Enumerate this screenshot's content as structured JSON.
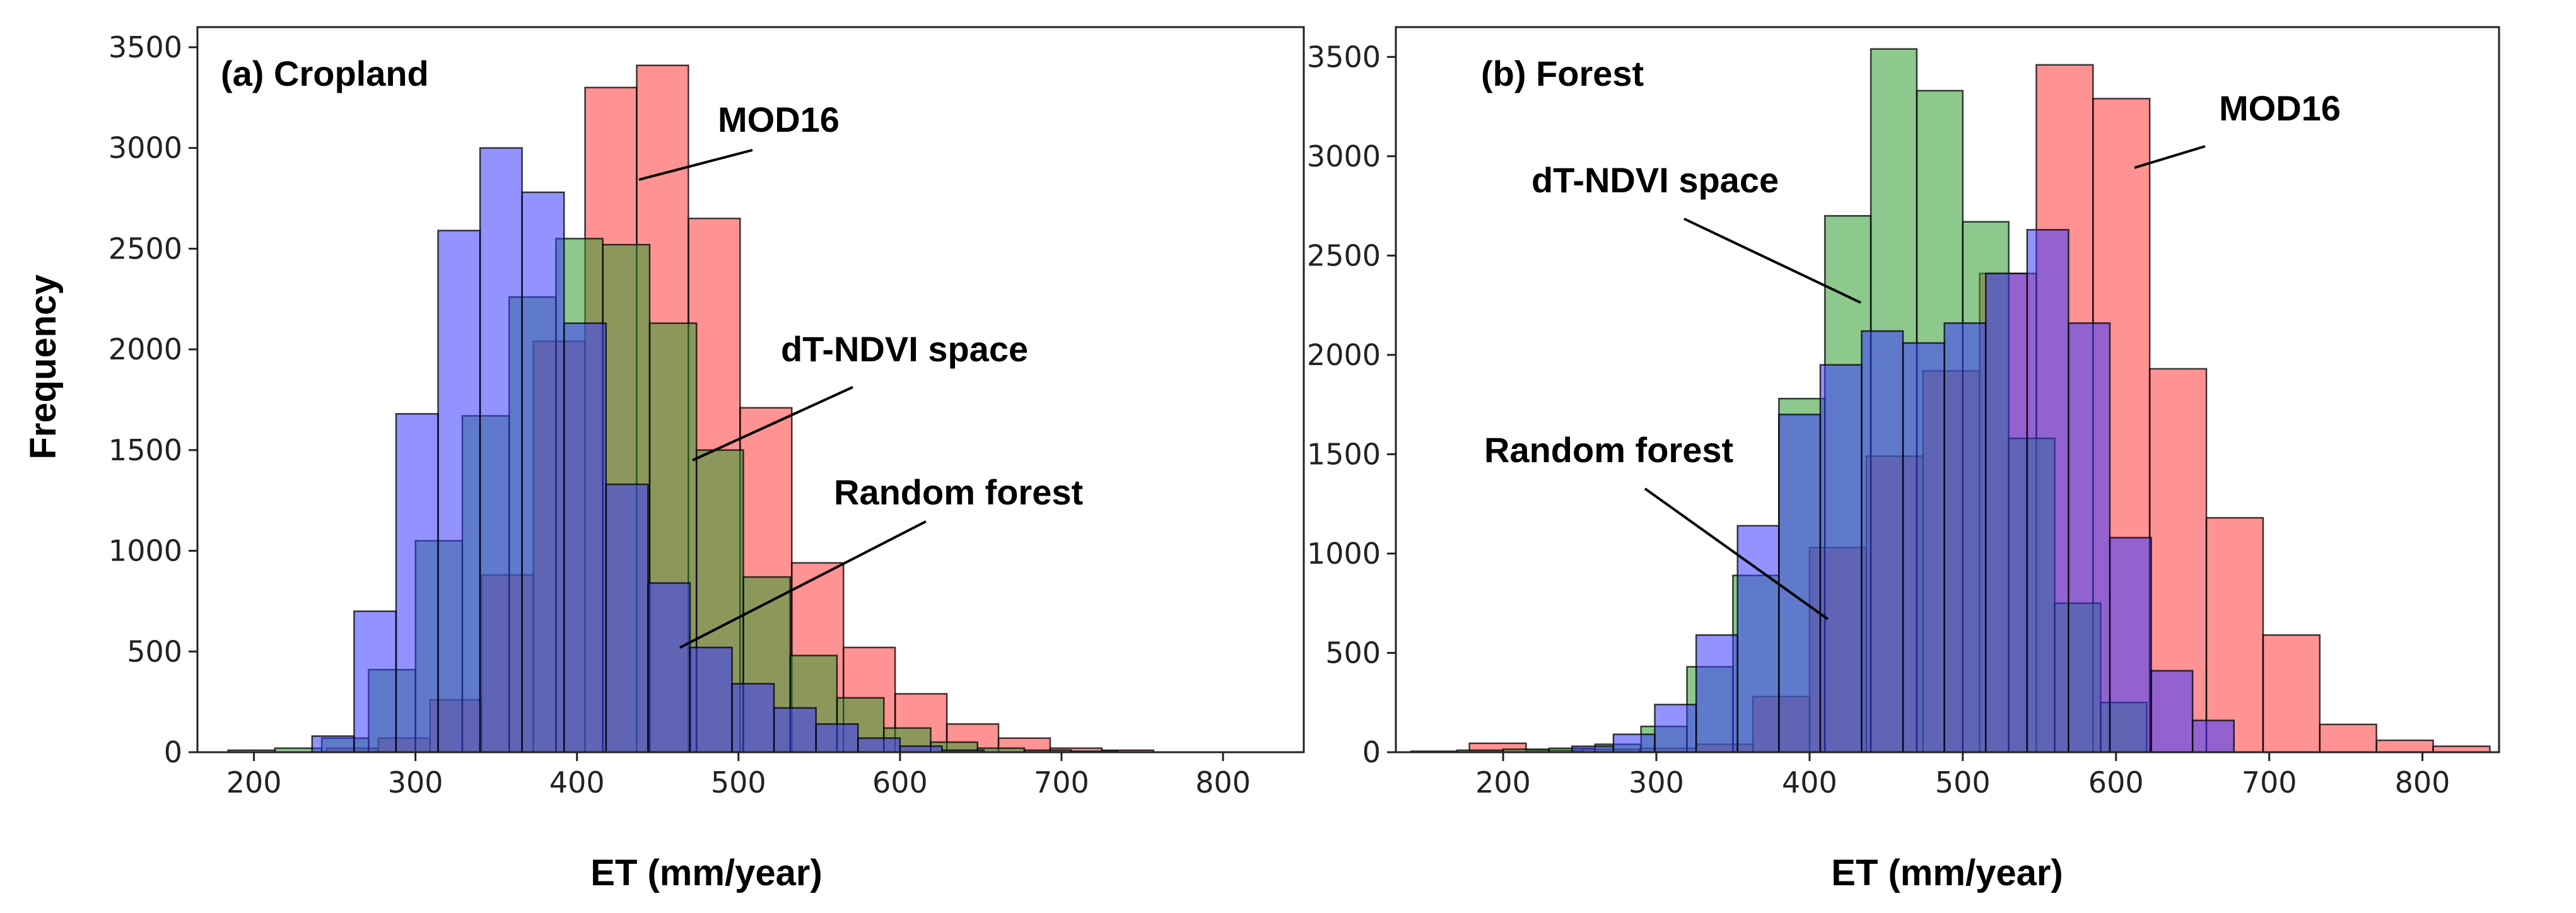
{
  "figure": {
    "ylabel": "Frequency"
  },
  "colors": {
    "mod16": "#ff3b3b",
    "dtndvi": "#2f9a2f",
    "rf": "#3a3aff"
  },
  "chart_data": [
    {
      "type": "bar",
      "title": "(a) Cropland",
      "xlabel": "ET (mm/year)",
      "ylabel": "Frequency",
      "xlim": [
        165,
        850
      ],
      "ylim": [
        0,
        3600
      ],
      "xticks": [
        200,
        300,
        400,
        500,
        600,
        700,
        800
      ],
      "yticks": [
        0,
        500,
        1000,
        1500,
        2000,
        2500,
        3000,
        3500
      ],
      "series": [
        {
          "name": "MOD16",
          "color": "#ff3b3b",
          "edges": [
            245,
            277,
            309,
            341,
            373,
            405,
            437,
            469,
            501,
            533,
            565,
            597,
            629,
            661,
            693,
            725,
            757
          ],
          "values": [
            20,
            70,
            260,
            880,
            2040,
            3300,
            3410,
            2650,
            1710,
            940,
            520,
            290,
            140,
            70,
            20,
            10
          ]
        },
        {
          "name": "dT-NDVI space",
          "color": "#2f9a2f",
          "edges": [
            184,
            213,
            242,
            271,
            300,
            329,
            358,
            387,
            416,
            445,
            474,
            503,
            532,
            561,
            590,
            619,
            648,
            677,
            706,
            735
          ],
          "values": [
            10,
            20,
            70,
            410,
            1050,
            1670,
            2260,
            2550,
            2520,
            2130,
            1500,
            870,
            480,
            270,
            120,
            50,
            20,
            10,
            5
          ]
        },
        {
          "name": "Random forest",
          "color": "#3a3aff",
          "edges": [
            236,
            262,
            288,
            314,
            340,
            366,
            392,
            418,
            444,
            470,
            496,
            522,
            548,
            574,
            600,
            626,
            652
          ],
          "values": [
            80,
            700,
            1680,
            2590,
            3000,
            2780,
            2130,
            1330,
            840,
            520,
            340,
            220,
            140,
            70,
            30,
            10
          ]
        }
      ],
      "annotations": [
        {
          "text": "MOD16",
          "series": "MOD16"
        },
        {
          "text": "dT-NDVI space",
          "series": "dT-NDVI space"
        },
        {
          "text": "Random forest",
          "series": "Random forest"
        }
      ]
    },
    {
      "type": "bar",
      "title": "(b) Forest",
      "xlabel": "ET (mm/year)",
      "ylabel": "",
      "xlim": [
        130,
        850
      ],
      "ylim": [
        0,
        3650
      ],
      "xticks": [
        200,
        300,
        400,
        500,
        600,
        700,
        800
      ],
      "yticks": [
        0,
        500,
        1000,
        1500,
        2000,
        2500,
        3000,
        3500
      ],
      "series": [
        {
          "name": "MOD16",
          "color": "#ff3b3b",
          "edges": [
            178,
            215,
            252,
            289,
            326,
            363,
            400,
            437,
            474,
            511,
            548,
            585,
            622,
            659,
            696,
            733,
            770,
            807,
            844
          ],
          "values": [
            45,
            10,
            15,
            20,
            40,
            280,
            1030,
            1490,
            1920,
            2410,
            3460,
            3290,
            1930,
            1180,
            590,
            140,
            60,
            30
          ]
        },
        {
          "name": "dT-NDVI space",
          "color": "#2f9a2f",
          "edges": [
            140,
            170,
            200,
            230,
            260,
            290,
            320,
            350,
            380,
            410,
            440,
            470,
            500,
            530,
            560,
            590,
            620
          ],
          "values": [
            5,
            10,
            15,
            20,
            40,
            130,
            430,
            890,
            1780,
            2700,
            3540,
            3330,
            2670,
            1580,
            750,
            250
          ]
        },
        {
          "name": "Random forest",
          "color": "#3a3aff",
          "edges": [
            245,
            272,
            299,
            326,
            353,
            380,
            407,
            434,
            461,
            488,
            515,
            542,
            569,
            596,
            623,
            650,
            677
          ],
          "values": [
            30,
            90,
            240,
            590,
            1140,
            1700,
            1950,
            2120,
            2060,
            2160,
            2410,
            2630,
            2160,
            1080,
            410,
            160
          ]
        }
      ],
      "annotations": [
        {
          "text": "MOD16",
          "series": "MOD16"
        },
        {
          "text": "dT-NDVI space",
          "series": "dT-NDVI space"
        },
        {
          "text": "Random forest",
          "series": "Random forest"
        }
      ]
    }
  ]
}
